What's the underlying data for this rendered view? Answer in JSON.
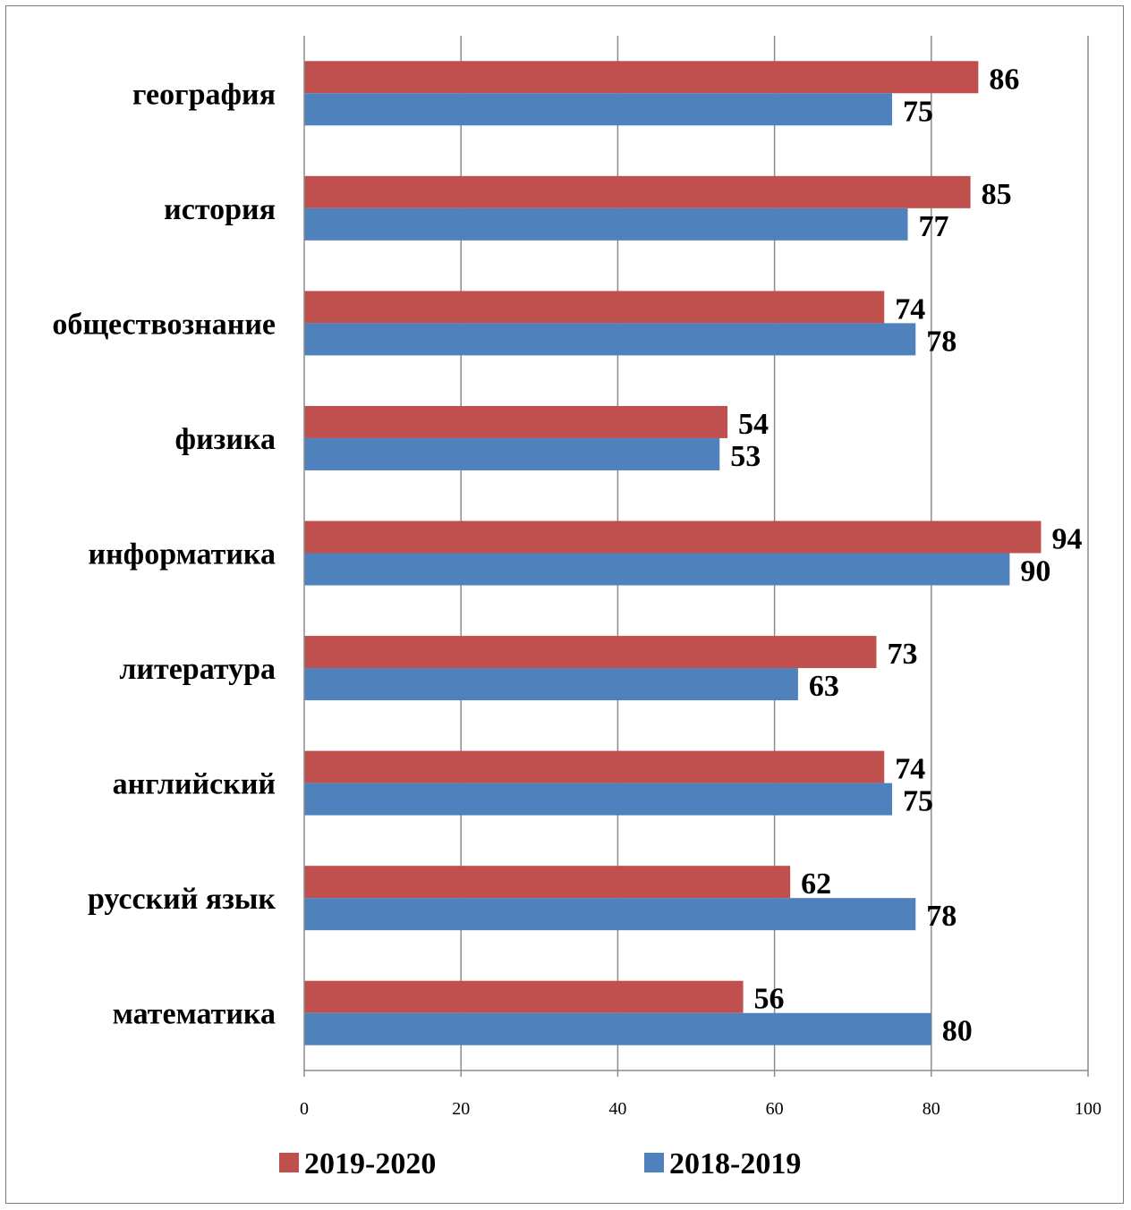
{
  "chart_data": {
    "type": "bar",
    "orientation": "horizontal",
    "categories": [
      "география",
      "история",
      "обществознание",
      "физика",
      "информатика",
      "литература",
      "английский",
      "русский язык",
      "математика"
    ],
    "series": [
      {
        "name": "2019-2020",
        "color": "#c0504d",
        "values": [
          86,
          85,
          74,
          54,
          94,
          73,
          74,
          62,
          56
        ]
      },
      {
        "name": "2018-2019",
        "color": "#4f81bd",
        "values": [
          75,
          77,
          78,
          53,
          90,
          63,
          75,
          78,
          80
        ]
      }
    ],
    "xlim": [
      0,
      100
    ],
    "x_ticks": [
      "0",
      "20",
      "40",
      "60",
      "80",
      "100"
    ],
    "grid": true,
    "data_labels": true,
    "legend_position": "bottom",
    "title": "",
    "xlabel": "",
    "ylabel": ""
  }
}
